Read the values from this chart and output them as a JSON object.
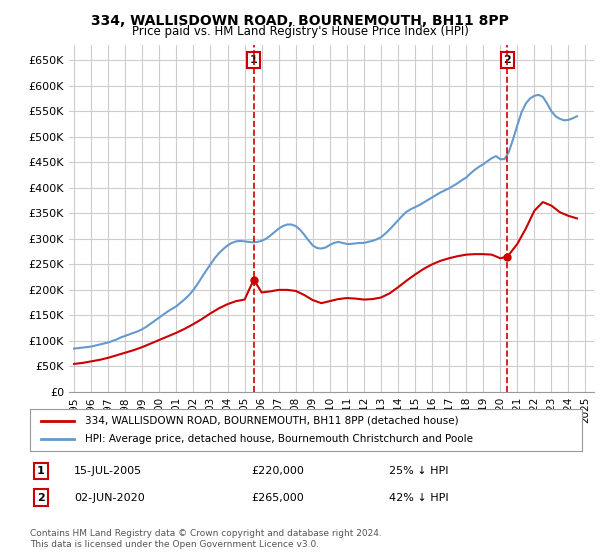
{
  "title": "334, WALLISDOWN ROAD, BOURNEMOUTH, BH11 8PP",
  "subtitle": "Price paid vs. HM Land Registry's House Price Index (HPI)",
  "legend_line1": "334, WALLISDOWN ROAD, BOURNEMOUTH, BH11 8PP (detached house)",
  "legend_line2": "HPI: Average price, detached house, Bournemouth Christchurch and Poole",
  "footer": "Contains HM Land Registry data © Crown copyright and database right 2024.\nThis data is licensed under the Open Government Licence v3.0.",
  "annotation1": {
    "label": "1",
    "date": "15-JUL-2005",
    "price": "£220,000",
    "pct": "25% ↓ HPI",
    "x_year": 2005.54
  },
  "annotation2": {
    "label": "2",
    "date": "02-JUN-2020",
    "price": "£265,000",
    "pct": "42% ↓ HPI",
    "x_year": 2020.42
  },
  "ylim": [
    0,
    680000
  ],
  "xlim_start": 1995.0,
  "xlim_end": 2025.5,
  "yticks": [
    0,
    50000,
    100000,
    150000,
    200000,
    250000,
    300000,
    350000,
    400000,
    450000,
    500000,
    550000,
    600000,
    650000
  ],
  "xticks": [
    1995,
    1996,
    1997,
    1998,
    1999,
    2000,
    2001,
    2002,
    2003,
    2004,
    2005,
    2006,
    2007,
    2008,
    2009,
    2010,
    2011,
    2012,
    2013,
    2014,
    2015,
    2016,
    2017,
    2018,
    2019,
    2020,
    2021,
    2022,
    2023,
    2024,
    2025
  ],
  "hpi_color": "#6699cc",
  "price_color": "#cc0000",
  "point_color": "#cc0000",
  "annotation_box_color": "#cc0000",
  "grid_color": "#cccccc",
  "bg_color": "#ffffff",
  "hpi_data": {
    "years": [
      1995.0,
      1995.25,
      1995.5,
      1995.75,
      1996.0,
      1996.25,
      1996.5,
      1996.75,
      1997.0,
      1997.25,
      1997.5,
      1997.75,
      1998.0,
      1998.25,
      1998.5,
      1998.75,
      1999.0,
      1999.25,
      1999.5,
      1999.75,
      2000.0,
      2000.25,
      2000.5,
      2000.75,
      2001.0,
      2001.25,
      2001.5,
      2001.75,
      2002.0,
      2002.25,
      2002.5,
      2002.75,
      2003.0,
      2003.25,
      2003.5,
      2003.75,
      2004.0,
      2004.25,
      2004.5,
      2004.75,
      2005.0,
      2005.25,
      2005.5,
      2005.75,
      2006.0,
      2006.25,
      2006.5,
      2006.75,
      2007.0,
      2007.25,
      2007.5,
      2007.75,
      2008.0,
      2008.25,
      2008.5,
      2008.75,
      2009.0,
      2009.25,
      2009.5,
      2009.75,
      2010.0,
      2010.25,
      2010.5,
      2010.75,
      2011.0,
      2011.25,
      2011.5,
      2011.75,
      2012.0,
      2012.25,
      2012.5,
      2012.75,
      2013.0,
      2013.25,
      2013.5,
      2013.75,
      2014.0,
      2014.25,
      2014.5,
      2014.75,
      2015.0,
      2015.25,
      2015.5,
      2015.75,
      2016.0,
      2016.25,
      2016.5,
      2016.75,
      2017.0,
      2017.25,
      2017.5,
      2017.75,
      2018.0,
      2018.25,
      2018.5,
      2018.75,
      2019.0,
      2019.25,
      2019.5,
      2019.75,
      2020.0,
      2020.25,
      2020.5,
      2020.75,
      2021.0,
      2021.25,
      2021.5,
      2021.75,
      2022.0,
      2022.25,
      2022.5,
      2022.75,
      2023.0,
      2023.25,
      2023.5,
      2023.75,
      2024.0,
      2024.25,
      2024.5
    ],
    "values": [
      85000,
      86000,
      87000,
      88000,
      89000,
      91000,
      93000,
      95000,
      97000,
      100000,
      103000,
      107000,
      110000,
      113000,
      116000,
      119000,
      123000,
      128000,
      134000,
      140000,
      146000,
      152000,
      158000,
      163000,
      168000,
      175000,
      182000,
      190000,
      200000,
      212000,
      225000,
      238000,
      250000,
      262000,
      272000,
      280000,
      287000,
      292000,
      295000,
      296000,
      295000,
      294000,
      293000,
      294000,
      296000,
      300000,
      306000,
      313000,
      320000,
      325000,
      328000,
      328000,
      325000,
      318000,
      308000,
      297000,
      287000,
      282000,
      281000,
      283000,
      288000,
      292000,
      294000,
      292000,
      290000,
      290000,
      291000,
      292000,
      292000,
      294000,
      296000,
      299000,
      303000,
      310000,
      318000,
      327000,
      336000,
      345000,
      353000,
      358000,
      362000,
      366000,
      371000,
      376000,
      381000,
      386000,
      391000,
      395000,
      399000,
      404000,
      409000,
      415000,
      420000,
      428000,
      435000,
      441000,
      446000,
      452000,
      458000,
      462000,
      456000,
      456000,
      470000,
      495000,
      522000,
      548000,
      565000,
      575000,
      580000,
      582000,
      578000,
      565000,
      550000,
      540000,
      535000,
      532000,
      533000,
      536000,
      540000
    ]
  },
  "price_data": {
    "years": [
      2005.54,
      2020.42
    ],
    "values": [
      220000,
      265000
    ]
  },
  "price_line": {
    "years": [
      1995.0,
      1995.5,
      1996.0,
      1996.5,
      1997.0,
      1997.5,
      1998.0,
      1998.5,
      1999.0,
      1999.5,
      2000.0,
      2000.5,
      2001.0,
      2001.5,
      2002.0,
      2002.5,
      2003.0,
      2003.5,
      2004.0,
      2004.5,
      2005.0,
      2005.54,
      2006.0,
      2006.5,
      2007.0,
      2007.5,
      2008.0,
      2008.5,
      2009.0,
      2009.5,
      2010.0,
      2010.5,
      2011.0,
      2011.5,
      2012.0,
      2012.5,
      2013.0,
      2013.5,
      2014.0,
      2014.5,
      2015.0,
      2015.5,
      2016.0,
      2016.5,
      2017.0,
      2017.5,
      2018.0,
      2018.5,
      2019.0,
      2019.5,
      2020.0,
      2020.42,
      2021.0,
      2021.5,
      2022.0,
      2022.5,
      2023.0,
      2023.5,
      2024.0,
      2024.5
    ],
    "values": [
      55000,
      57000,
      60000,
      63000,
      67000,
      72000,
      77000,
      82000,
      88000,
      95000,
      102000,
      109000,
      116000,
      124000,
      133000,
      143000,
      154000,
      164000,
      172000,
      178000,
      181000,
      220000,
      195000,
      197000,
      200000,
      200000,
      198000,
      190000,
      180000,
      174000,
      178000,
      182000,
      184000,
      183000,
      181000,
      182000,
      185000,
      193000,
      205000,
      218000,
      230000,
      241000,
      250000,
      257000,
      262000,
      266000,
      269000,
      270000,
      270000,
      269000,
      262000,
      265000,
      290000,
      320000,
      355000,
      372000,
      365000,
      352000,
      345000,
      340000
    ]
  }
}
